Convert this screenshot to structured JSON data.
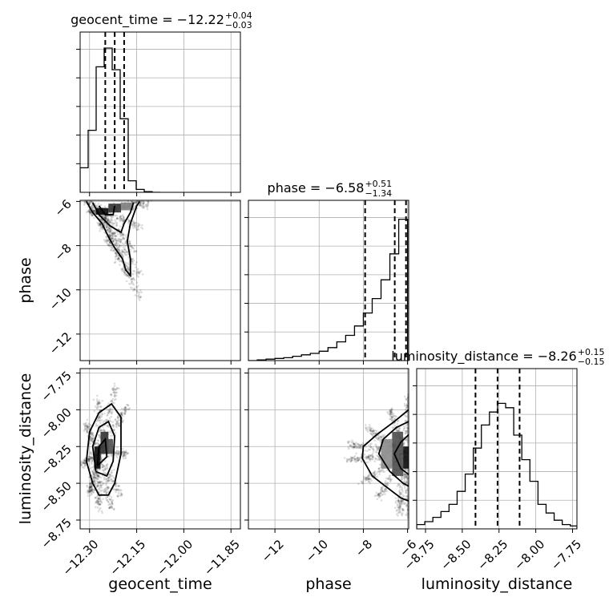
{
  "chart_data": {
    "type": "corner",
    "parameters": [
      {
        "name": "geocent_time",
        "label": "geocent_time",
        "median": -12.22,
        "plus": "0.04",
        "minus": "0.03",
        "title": "geocent_time = −12.22",
        "title_plus": "+0.04",
        "title_minus": "−0.03",
        "range": [
          -12.33,
          -11.82
        ],
        "ticks": [
          -12.3,
          -12.15,
          -12.0,
          -11.85
        ],
        "tick_labels": [
          "−12.30",
          "−12.15",
          "−12.00",
          "−11.85"
        ],
        "quantiles": [
          -12.25,
          -12.22,
          -12.19
        ],
        "hist": {
          "edges": [
            -12.33,
            -12.3045,
            -12.279,
            -12.2535,
            -12.228,
            -12.2025,
            -12.177,
            -12.1515,
            -12.126,
            -12.1005,
            -12.075
          ],
          "counts": [
            0.17,
            0.43,
            0.87,
            1.0,
            0.85,
            0.51,
            0.08,
            0.02,
            0.005,
            0.0
          ]
        }
      },
      {
        "name": "phase",
        "label": "phase",
        "median": -6.58,
        "plus": "0.51",
        "minus": "1.34",
        "title": "phase = −6.58",
        "title_plus": "+0.51",
        "title_minus": "−1.34",
        "range": [
          -13.2,
          -5.95
        ],
        "ticks": [
          -12,
          -10,
          -8,
          -6
        ],
        "tick_labels": [
          "−12",
          "−10",
          "−8",
          "−6"
        ],
        "quantiles": [
          -7.92,
          -6.58,
          -6.07
        ],
        "hist": {
          "edges": [
            -13.2,
            -12.8,
            -12.4,
            -12.0,
            -11.6,
            -11.2,
            -10.8,
            -10.4,
            -10.0,
            -9.6,
            -9.2,
            -8.8,
            -8.4,
            -8.0,
            -7.6,
            -7.2,
            -6.8,
            -6.4,
            -6.0
          ],
          "counts": [
            0.0,
            0.005,
            0.01,
            0.015,
            0.02,
            0.03,
            0.04,
            0.05,
            0.065,
            0.09,
            0.13,
            0.175,
            0.24,
            0.33,
            0.43,
            0.56,
            0.74,
            0.98
          ]
        }
      },
      {
        "name": "luminosity_distance",
        "label": "luminosity_distance",
        "median": -8.26,
        "plus": "0.15",
        "minus": "0.15",
        "title": "luminosity_distance = −8.26",
        "title_plus": "+0.15",
        "title_minus": "−0.15",
        "range": [
          -8.81,
          -7.72
        ],
        "ticks": [
          -8.75,
          -8.5,
          -8.25,
          -8.0,
          -7.75
        ],
        "tick_labels": [
          "−8.75",
          "−8.50",
          "−8.25",
          "−8.00",
          "−7.75"
        ],
        "quantiles": [
          -8.41,
          -8.26,
          -8.11
        ],
        "hist": {
          "edges": [
            -8.81,
            -8.755,
            -8.7,
            -8.645,
            -8.59,
            -8.535,
            -8.48,
            -8.425,
            -8.37,
            -8.315,
            -8.26,
            -8.205,
            -8.15,
            -8.095,
            -8.04,
            -7.985,
            -7.93,
            -7.875,
            -7.82,
            -7.765,
            -7.72
          ],
          "counts": [
            0.03,
            0.05,
            0.08,
            0.12,
            0.17,
            0.26,
            0.38,
            0.56,
            0.72,
            0.81,
            0.87,
            0.84,
            0.65,
            0.48,
            0.33,
            0.17,
            0.11,
            0.06,
            0.03,
            0.02
          ]
        }
      }
    ],
    "pairs": [
      {
        "x": "geocent_time",
        "y": "phase",
        "density_peak": [
          -12.26,
          -6.4
        ],
        "cells": [
          {
            "x0": -12.28,
            "x1": -12.24,
            "y0": -6.6,
            "y1": -6.3,
            "level": 0.95
          },
          {
            "x0": -12.24,
            "x1": -12.2,
            "y0": -6.5,
            "y1": -6.1,
            "level": 0.8
          },
          {
            "x0": -12.2,
            "x1": -12.16,
            "y0": -6.4,
            "y1": -6.05,
            "level": 0.5
          }
        ],
        "contours": [
          [
            [
              -12.31,
              -6.0
            ],
            [
              -12.29,
              -6.5
            ],
            [
              -12.26,
              -7.0
            ],
            [
              -12.24,
              -7.6
            ],
            [
              -12.22,
              -8.1
            ],
            [
              -12.195,
              -8.6
            ],
            [
              -12.185,
              -9.1
            ],
            [
              -12.17,
              -9.35
            ],
            [
              -12.17,
              -8.6
            ],
            [
              -12.18,
              -7.8
            ],
            [
              -12.17,
              -7.0
            ],
            [
              -12.15,
              -6.2
            ],
            [
              -12.14,
              -6.0
            ]
          ],
          [
            [
              -12.29,
              -6.05
            ],
            [
              -12.27,
              -6.6
            ],
            [
              -12.235,
              -7.1
            ],
            [
              -12.2,
              -7.4
            ],
            [
              -12.19,
              -7.0
            ],
            [
              -12.17,
              -6.5
            ],
            [
              -12.16,
              -6.05
            ]
          ],
          [
            [
              -12.27,
              -6.2
            ],
            [
              -12.25,
              -6.6
            ],
            [
              -12.225,
              -6.6
            ],
            [
              -12.22,
              -6.2
            ]
          ]
        ],
        "scatter_count": 1100
      },
      {
        "x": "geocent_time",
        "y": "luminosity_distance",
        "density_peak": [
          -12.27,
          -8.3
        ],
        "cells": [
          {
            "x0": -12.285,
            "x1": -12.265,
            "y0": -8.4,
            "y1": -8.25,
            "level": 0.95
          },
          {
            "x0": -12.265,
            "x1": -12.24,
            "y0": -8.3,
            "y1": -8.15,
            "level": 0.8
          },
          {
            "x0": -12.245,
            "x1": -12.225,
            "y0": -8.3,
            "y1": -8.2,
            "level": 0.7
          }
        ],
        "contours": [
          [
            [
              -12.29,
              -8.5
            ],
            [
              -12.31,
              -8.35
            ],
            [
              -12.3,
              -8.15
            ],
            [
              -12.27,
              -8.02
            ],
            [
              -12.23,
              -7.96
            ],
            [
              -12.2,
              -8.05
            ],
            [
              -12.2,
              -8.3
            ],
            [
              -12.22,
              -8.5
            ],
            [
              -12.24,
              -8.58
            ],
            [
              -12.27,
              -8.58
            ],
            [
              -12.29,
              -8.5
            ]
          ],
          [
            [
              -12.28,
              -8.42
            ],
            [
              -12.29,
              -8.25
            ],
            [
              -12.27,
              -8.12
            ],
            [
              -12.24,
              -8.08
            ],
            [
              -12.22,
              -8.18
            ],
            [
              -12.225,
              -8.35
            ],
            [
              -12.245,
              -8.45
            ],
            [
              -12.28,
              -8.42
            ]
          ],
          [
            [
              -12.275,
              -8.38
            ],
            [
              -12.27,
              -8.25
            ],
            [
              -12.25,
              -8.2
            ],
            [
              -12.245,
              -8.32
            ],
            [
              -12.275,
              -8.38
            ]
          ]
        ],
        "scatter_count": 1100
      },
      {
        "x": "phase",
        "y": "luminosity_distance",
        "density_peak": [
          -6.1,
          -8.3
        ],
        "cells": [
          {
            "x0": -6.2,
            "x1": -5.95,
            "y0": -8.4,
            "y1": -8.25,
            "level": 0.95
          },
          {
            "x0": -6.7,
            "x1": -6.2,
            "y0": -8.45,
            "y1": -8.15,
            "level": 0.7
          },
          {
            "x0": -7.2,
            "x1": -6.7,
            "y0": -8.4,
            "y1": -8.2,
            "level": 0.45
          }
        ],
        "contours": [
          [
            [
              -5.95,
              -8.0
            ],
            [
              -6.6,
              -8.08
            ],
            [
              -7.4,
              -8.17
            ],
            [
              -8.0,
              -8.25
            ],
            [
              -8.05,
              -8.33
            ],
            [
              -7.6,
              -8.45
            ],
            [
              -7.0,
              -8.52
            ],
            [
              -6.3,
              -8.6
            ],
            [
              -5.95,
              -8.62
            ]
          ],
          [
            [
              -5.95,
              -8.08
            ],
            [
              -6.5,
              -8.12
            ],
            [
              -7.1,
              -8.2
            ],
            [
              -7.3,
              -8.3
            ],
            [
              -6.8,
              -8.42
            ],
            [
              -6.2,
              -8.5
            ],
            [
              -5.95,
              -8.52
            ]
          ],
          [
            [
              -5.95,
              -8.17
            ],
            [
              -6.3,
              -8.22
            ],
            [
              -6.6,
              -8.3
            ],
            [
              -6.3,
              -8.4
            ],
            [
              -5.95,
              -8.44
            ]
          ]
        ],
        "scatter_count": 1200
      }
    ]
  }
}
